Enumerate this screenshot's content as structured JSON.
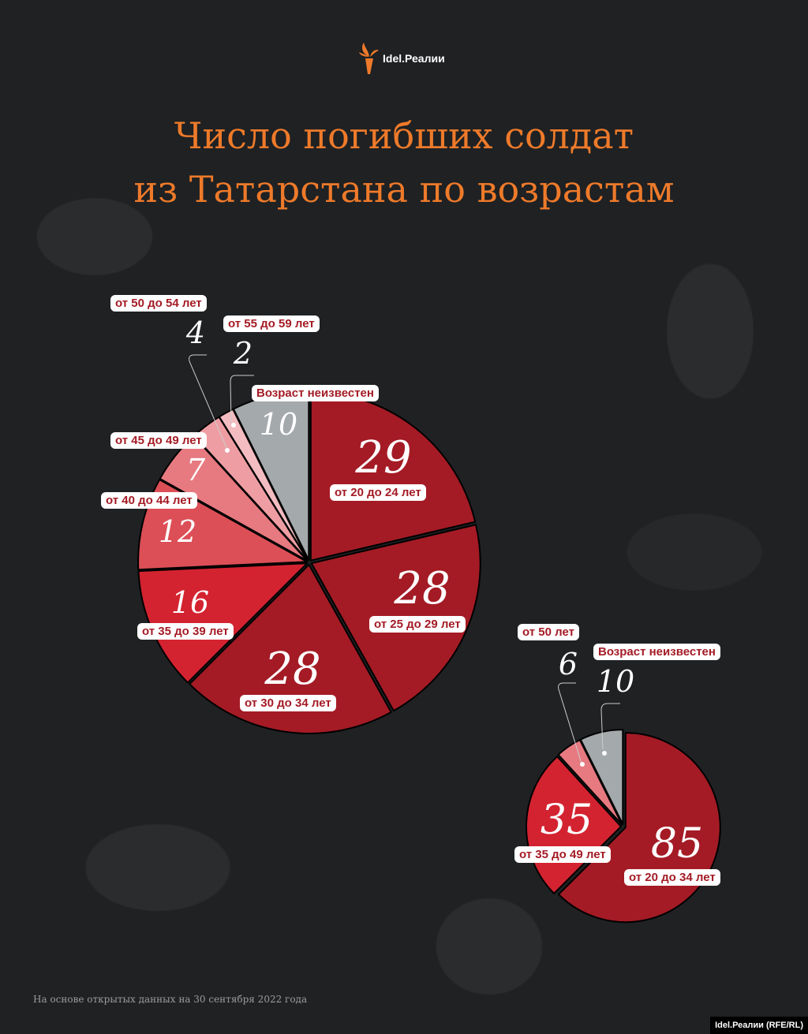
{
  "logo": {
    "text": "Idel.Реалии",
    "icon": "torch-icon",
    "color": "#ee7a2a"
  },
  "title_line1": "Число погибших солдат",
  "title_line2": "из Татарстана по возрастам",
  "footnote": "На основе открытых данных на 30 сентября 2022 года",
  "credit": "Idel.Реалии (RFE/RL)",
  "chart_data": [
    {
      "type": "pie",
      "start": "top, clockwise",
      "categories": [
        "от 20 до 24 лет",
        "от 25 до 29 лет",
        "от 30 до 34 лет",
        "от 35 до 39 лет",
        "от 40 до 44 лет",
        "от 45 до 49 лет",
        "от 50 до 54 лет",
        "от 55 до 59 лет",
        "Возраст неизвестен"
      ],
      "values": [
        29,
        28,
        28,
        16,
        12,
        7,
        4,
        2,
        10
      ],
      "colors": [
        "#a41b25",
        "#a41b25",
        "#a41b25",
        "#d42330",
        "#dc4f57",
        "#e67a80",
        "#ee9ea3",
        "#f3bcc0",
        "#a4a9ac"
      ]
    },
    {
      "type": "pie",
      "start": "top, clockwise",
      "categories": [
        "от 20 до 34 лет",
        "от 35 до 49 лет",
        "от 50 лет",
        "Возраст неизвестен"
      ],
      "values": [
        85,
        35,
        6,
        10
      ],
      "colors": [
        "#a41b25",
        "#d42330",
        "#e67a80",
        "#a4a9ac"
      ]
    }
  ]
}
